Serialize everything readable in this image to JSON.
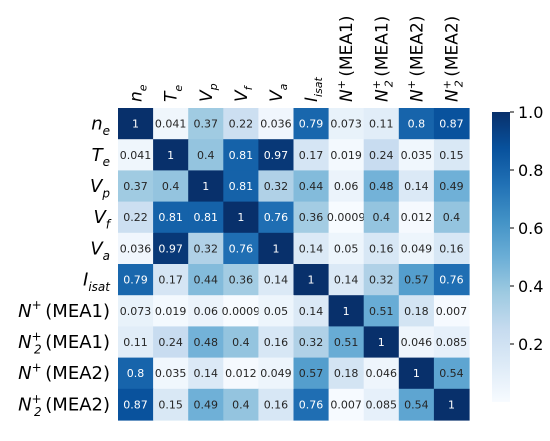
{
  "chart_data": {
    "type": "heatmap",
    "title": "",
    "xlabel": "",
    "ylabel": "",
    "variables": [
      {
        "base": "N",
        "sub": "",
        "sup": "+",
        "suffix": "(MEA1)"
      },
      {
        "base": "n",
        "sub": "e",
        "sup": "",
        "suffix": ""
      },
      {
        "base": "T",
        "sub": "e",
        "sup": "",
        "suffix": ""
      },
      {
        "base": "V",
        "sub": "p",
        "sup": "",
        "suffix": ""
      },
      {
        "base": "V",
        "sub": "f",
        "sup": "",
        "suffix": ""
      },
      {
        "base": "V",
        "sub": "a",
        "sup": "",
        "suffix": ""
      },
      {
        "base": "I",
        "sub": "isat",
        "sup": "",
        "suffix": ""
      },
      {
        "base": "N",
        "sub": "2",
        "sup": "+",
        "suffix": "(MEA1)"
      },
      {
        "base": "N",
        "sub": "",
        "sup": "+",
        "suffix": "(MEA2)"
      },
      {
        "base": "N",
        "sub": "2",
        "sup": "+",
        "suffix": "(MEA2)"
      }
    ],
    "order": [
      1,
      2,
      3,
      4,
      5,
      6,
      0,
      7,
      8,
      9
    ],
    "values": [
      [
        "1",
        "0.041",
        "0.37",
        "0.22",
        "0.036",
        "0.79",
        "0.073",
        "0.11",
        "0.8",
        "0.87"
      ],
      [
        "0.041",
        "1",
        "0.4",
        "0.81",
        "0.97",
        "0.17",
        "0.019",
        "0.24",
        "0.035",
        "0.15"
      ],
      [
        "0.37",
        "0.4",
        "1",
        "0.81",
        "0.32",
        "0.44",
        "0.06",
        "0.48",
        "0.14",
        "0.49"
      ],
      [
        "0.22",
        "0.81",
        "0.81",
        "1",
        "0.76",
        "0.36",
        "0.0009",
        "0.4",
        "0.012",
        "0.4"
      ],
      [
        "0.036",
        "0.97",
        "0.32",
        "0.76",
        "1",
        "0.14",
        "0.05",
        "0.16",
        "0.049",
        "0.16"
      ],
      [
        "0.79",
        "0.17",
        "0.44",
        "0.36",
        "0.14",
        "1",
        "0.14",
        "0.32",
        "0.57",
        "0.76"
      ],
      [
        "0.073",
        "0.019",
        "0.06",
        "0.0009",
        "0.05",
        "0.14",
        "1",
        "0.51",
        "0.18",
        "0.007"
      ],
      [
        "0.11",
        "0.24",
        "0.48",
        "0.4",
        "0.16",
        "0.32",
        "0.51",
        "1",
        "0.046",
        "0.085"
      ],
      [
        "0.8",
        "0.035",
        "0.14",
        "0.012",
        "0.049",
        "0.57",
        "0.18",
        "0.046",
        "1",
        "0.54"
      ],
      [
        "0.87",
        "0.15",
        "0.49",
        "0.4",
        "0.16",
        "0.76",
        "0.007",
        "0.085",
        "0.54",
        "1"
      ]
    ],
    "colormap": "Blues",
    "colorbar": {
      "vmin": 0.0,
      "vmax": 1.0,
      "ticks": [
        "0.2",
        "0.4",
        "0.6",
        "0.8",
        "1.0"
      ]
    },
    "grid": false,
    "legend": "colorbar-right"
  }
}
